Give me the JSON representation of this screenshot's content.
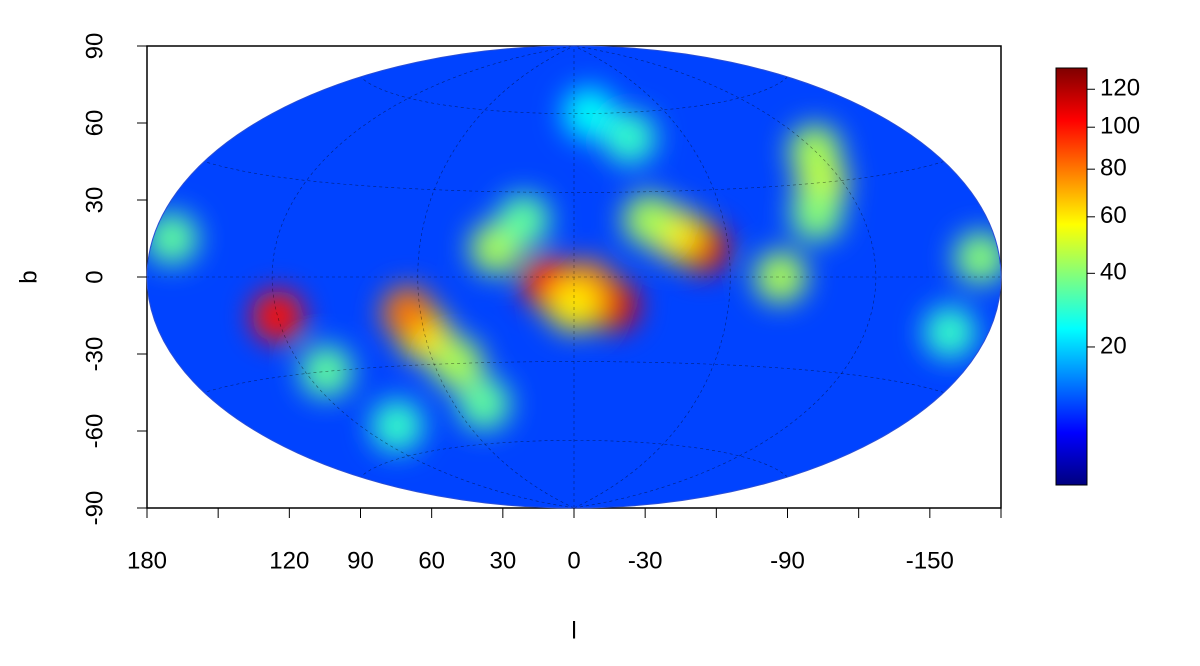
{
  "chart_data": {
    "type": "skymap",
    "projection": "hammer",
    "xlabel": "l",
    "ylabel": "b",
    "xlim": [
      180,
      -180
    ],
    "ylim": [
      -90,
      90
    ],
    "xticks": [
      180,
      120,
      90,
      60,
      30,
      0,
      -30,
      -90,
      -150
    ],
    "xticks_minor": [
      150,
      -60,
      -120,
      -180
    ],
    "yticks": [
      90,
      60,
      30,
      0,
      -30,
      -60,
      -90
    ],
    "background_value": 9,
    "points": {
      "x": [
        5,
        -10,
        -15,
        10,
        -5,
        0,
        60,
        65,
        50,
        45,
        120,
        110,
        100,
        -50,
        -40,
        -30,
        -110,
        -120,
        -100,
        30,
        20,
        -80,
        -170,
        170,
        -160,
        -30,
        -10
      ],
      "y": [
        -5,
        -8,
        -10,
        -2,
        -3,
        -10,
        -20,
        -12,
        -30,
        -45,
        -12,
        -30,
        -50,
        10,
        15,
        20,
        30,
        40,
        20,
        10,
        20,
        0,
        5,
        10,
        -15,
        50,
        60
      ],
      "values": [
        70,
        90,
        110,
        100,
        80,
        60,
        60,
        80,
        45,
        35,
        100,
        35,
        30,
        110,
        60,
        45,
        50,
        45,
        40,
        45,
        35,
        45,
        40,
        35,
        30,
        30,
        25
      ]
    },
    "zlim": [
      1,
      132
    ],
    "zscale": "sqrt",
    "zticks": [
      20,
      40,
      60,
      80,
      100,
      120
    ],
    "colormap": [
      "#00007f",
      "#0000ff",
      "#007fff",
      "#00ffff",
      "#7fff7f",
      "#ffff00",
      "#ff7f00",
      "#ff0000",
      "#7f0000"
    ]
  }
}
